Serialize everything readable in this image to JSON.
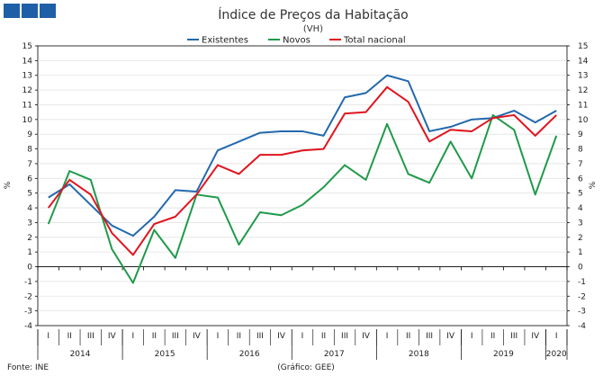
{
  "header": {
    "logo_color": "#1f5fa8"
  },
  "chart_data": {
    "type": "line",
    "title": "Índice de Preços da Habitação",
    "subtitle": "(VH)",
    "ylabel_left": "%",
    "ylabel_right": "%",
    "ylim": [
      -4,
      15
    ],
    "yticks": [
      -4,
      -3,
      -2,
      -1,
      0,
      1,
      2,
      3,
      4,
      5,
      6,
      7,
      8,
      9,
      10,
      11,
      12,
      13,
      14,
      15
    ],
    "grid": "horizontal",
    "legend_position": "top-center",
    "x": [
      "I",
      "II",
      "III",
      "IV",
      "I",
      "II",
      "III",
      "IV",
      "I",
      "II",
      "III",
      "IV",
      "I",
      "II",
      "III",
      "IV",
      "I",
      "II",
      "III",
      "IV",
      "I",
      "II",
      "III",
      "IV",
      "I"
    ],
    "years": [
      {
        "label": "2014",
        "from": 0,
        "to": 3
      },
      {
        "label": "2015",
        "from": 4,
        "to": 7
      },
      {
        "label": "2016",
        "from": 8,
        "to": 11
      },
      {
        "label": "2017",
        "from": 12,
        "to": 15
      },
      {
        "label": "2018",
        "from": 16,
        "to": 19
      },
      {
        "label": "2019",
        "from": 20,
        "to": 23
      },
      {
        "label": "2020",
        "from": 24,
        "to": 24
      }
    ],
    "series": [
      {
        "name": "Existentes",
        "color": "#2369ad",
        "values": [
          4.7,
          5.6,
          4.2,
          2.8,
          2.1,
          3.4,
          5.2,
          5.1,
          7.9,
          8.5,
          9.1,
          9.2,
          9.2,
          8.9,
          11.5,
          11.8,
          13.0,
          12.6,
          9.2,
          9.5,
          10.0,
          10.1,
          10.6,
          9.8,
          10.6
        ]
      },
      {
        "name": "Novos",
        "color": "#1f9a4a",
        "values": [
          2.9,
          6.5,
          5.9,
          1.2,
          -1.1,
          2.5,
          0.6,
          4.9,
          4.7,
          1.5,
          3.7,
          3.5,
          4.2,
          5.4,
          6.9,
          5.9,
          9.7,
          6.3,
          5.7,
          8.5,
          6.0,
          10.3,
          9.3,
          4.9,
          8.9
        ]
      },
      {
        "name": "Total nacional",
        "color": "#e0141e",
        "values": [
          4.0,
          5.9,
          4.9,
          2.3,
          0.8,
          2.9,
          3.4,
          4.9,
          6.9,
          6.3,
          7.6,
          7.6,
          7.9,
          8.0,
          10.4,
          10.5,
          12.2,
          11.2,
          8.5,
          9.3,
          9.2,
          10.1,
          10.3,
          8.9,
          10.3
        ]
      }
    ]
  },
  "footer": {
    "source": "Fonte: INE",
    "credit": "(Gráfico: GEE)"
  }
}
